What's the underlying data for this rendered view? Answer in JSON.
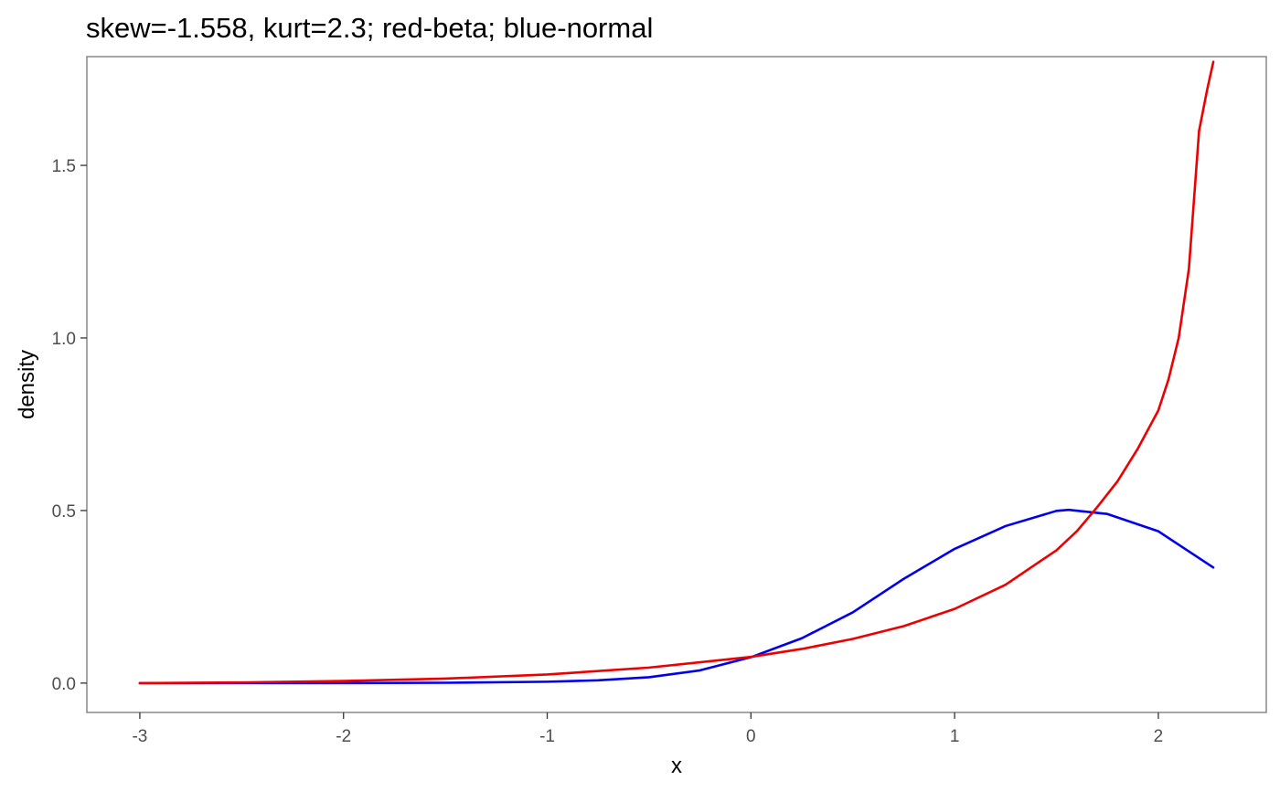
{
  "chart_data": {
    "type": "line",
    "title": "skew=-1.558, kurt=2.3; red-beta; blue-normal",
    "xlabel": "x",
    "ylabel": "density",
    "xlim": [
      -3.26,
      2.53
    ],
    "ylim": [
      -0.085,
      1.815
    ],
    "x_ticks": [
      -3,
      -2,
      -1,
      0,
      1,
      2
    ],
    "x_tick_labels": [
      "-3",
      "-2",
      "-1",
      "0",
      "1",
      "2"
    ],
    "y_ticks": [
      0.0,
      0.5,
      1.0,
      1.5
    ],
    "y_tick_labels": [
      "0.0",
      "0.5",
      "1.0",
      "1.5"
    ],
    "grid": false,
    "series": [
      {
        "color": "#0000ee",
        "x": [
          -3.0,
          -2.5,
          -2.0,
          -1.5,
          -1.0,
          -0.75,
          -0.5,
          -0.25,
          0.0,
          0.25,
          0.5,
          0.75,
          1.0,
          1.25,
          1.5,
          1.56,
          1.75,
          2.0,
          2.27
        ],
        "y": [
          0.0,
          0.0,
          0.0,
          0.001,
          0.004,
          0.008,
          0.017,
          0.037,
          0.075,
          0.13,
          0.205,
          0.302,
          0.389,
          0.455,
          0.499,
          0.502,
          0.49,
          0.44,
          0.335
        ]
      },
      {
        "color": "#ee0000",
        "x": [
          -3.0,
          -2.5,
          -2.0,
          -1.5,
          -1.0,
          -0.5,
          0.0,
          0.25,
          0.5,
          0.75,
          1.0,
          1.25,
          1.5,
          1.6,
          1.7,
          1.8,
          1.9,
          2.0,
          2.05,
          2.1,
          2.15,
          2.2,
          2.24,
          2.27
        ],
        "y": [
          0.0,
          0.002,
          0.006,
          0.013,
          0.025,
          0.045,
          0.076,
          0.099,
          0.128,
          0.165,
          0.215,
          0.285,
          0.385,
          0.44,
          0.51,
          0.585,
          0.68,
          0.79,
          0.88,
          1.0,
          1.2,
          1.6,
          1.72,
          1.8
        ]
      }
    ]
  }
}
